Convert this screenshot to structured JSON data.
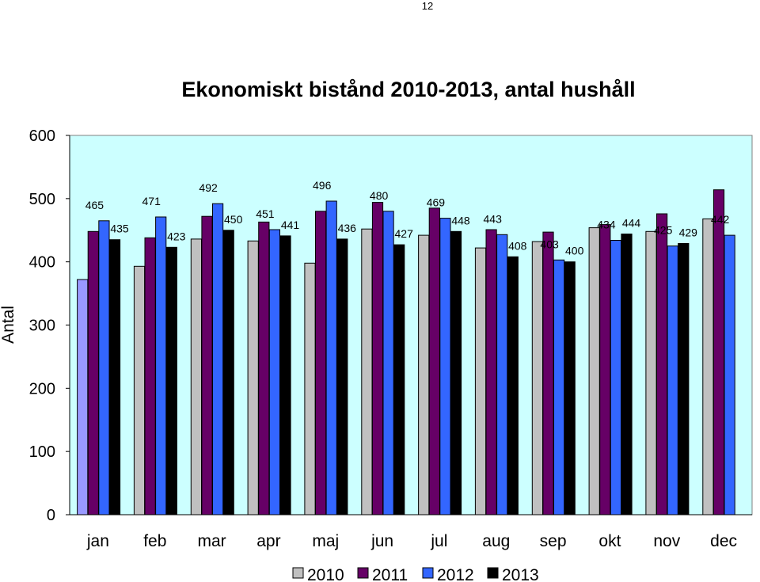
{
  "page": {
    "number": "12"
  },
  "colors": {
    "plot_bg": "#ccffff",
    "s2010": "#c0c0c0",
    "s2010_jan": "#9999ff",
    "s2011": "#660066",
    "s2012": "#3366ff",
    "s2013": "#000000"
  },
  "chart_data": {
    "type": "bar",
    "title": "Ekonomiskt bistånd 2010-2013, antal hushåll",
    "ylabel": "Antal",
    "xlabel": "",
    "ylim": [
      0,
      600
    ],
    "yticks": [
      "0",
      "100",
      "200",
      "300",
      "400",
      "500",
      "600"
    ],
    "grid": false,
    "legend_position": "bottom",
    "categories": [
      "jan",
      "feb",
      "mar",
      "apr",
      "maj",
      "jun",
      "jul",
      "aug",
      "sep",
      "okt",
      "nov",
      "dec"
    ],
    "series": [
      {
        "name": "2010",
        "values": [
          372,
          393,
          436,
          433,
          398,
          452,
          442,
          422,
          432,
          454,
          448,
          468
        ]
      },
      {
        "name": "2011",
        "values": [
          448,
          438,
          472,
          463,
          480,
          494,
          485,
          451,
          447,
          459,
          476,
          514
        ]
      },
      {
        "name": "2012",
        "values": [
          465,
          471,
          492,
          451,
          496,
          480,
          469,
          443,
          403,
          434,
          425,
          442
        ]
      },
      {
        "name": "2013",
        "values": [
          435,
          423,
          450,
          441,
          436,
          427,
          448,
          408,
          400,
          444,
          429,
          null
        ]
      }
    ],
    "data_labels": [
      {
        "category": "jan",
        "series": "2012",
        "text": "465"
      },
      {
        "category": "jan",
        "series": "2013",
        "text": "435"
      },
      {
        "category": "feb",
        "series": "2012",
        "text": "471"
      },
      {
        "category": "feb",
        "series": "2013",
        "text": "423"
      },
      {
        "category": "mar",
        "series": "2012",
        "text": "492"
      },
      {
        "category": "mar",
        "series": "2013",
        "text": "450"
      },
      {
        "category": "apr",
        "series": "2012",
        "text": "451"
      },
      {
        "category": "apr",
        "series": "2013",
        "text": "441"
      },
      {
        "category": "maj",
        "series": "2012",
        "text": "496"
      },
      {
        "category": "maj",
        "series": "2013",
        "text": "436"
      },
      {
        "category": "jun",
        "series": "2012",
        "text": "480"
      },
      {
        "category": "jun",
        "series": "2013",
        "text": "427"
      },
      {
        "category": "jul",
        "series": "2012",
        "text": "469"
      },
      {
        "category": "jul",
        "series": "2013",
        "text": "448"
      },
      {
        "category": "aug",
        "series": "2012",
        "text": "443"
      },
      {
        "category": "aug",
        "series": "2013",
        "text": "408"
      },
      {
        "category": "sep",
        "series": "2012",
        "text": "403"
      },
      {
        "category": "sep",
        "series": "2013",
        "text": "400"
      },
      {
        "category": "okt",
        "series": "2012",
        "text": "434"
      },
      {
        "category": "okt",
        "series": "2013",
        "text": "444"
      },
      {
        "category": "nov",
        "series": "2012",
        "text": "425"
      },
      {
        "category": "nov",
        "series": "2013",
        "text": "429"
      },
      {
        "category": "dec",
        "series": "2012",
        "text": "442"
      }
    ]
  }
}
